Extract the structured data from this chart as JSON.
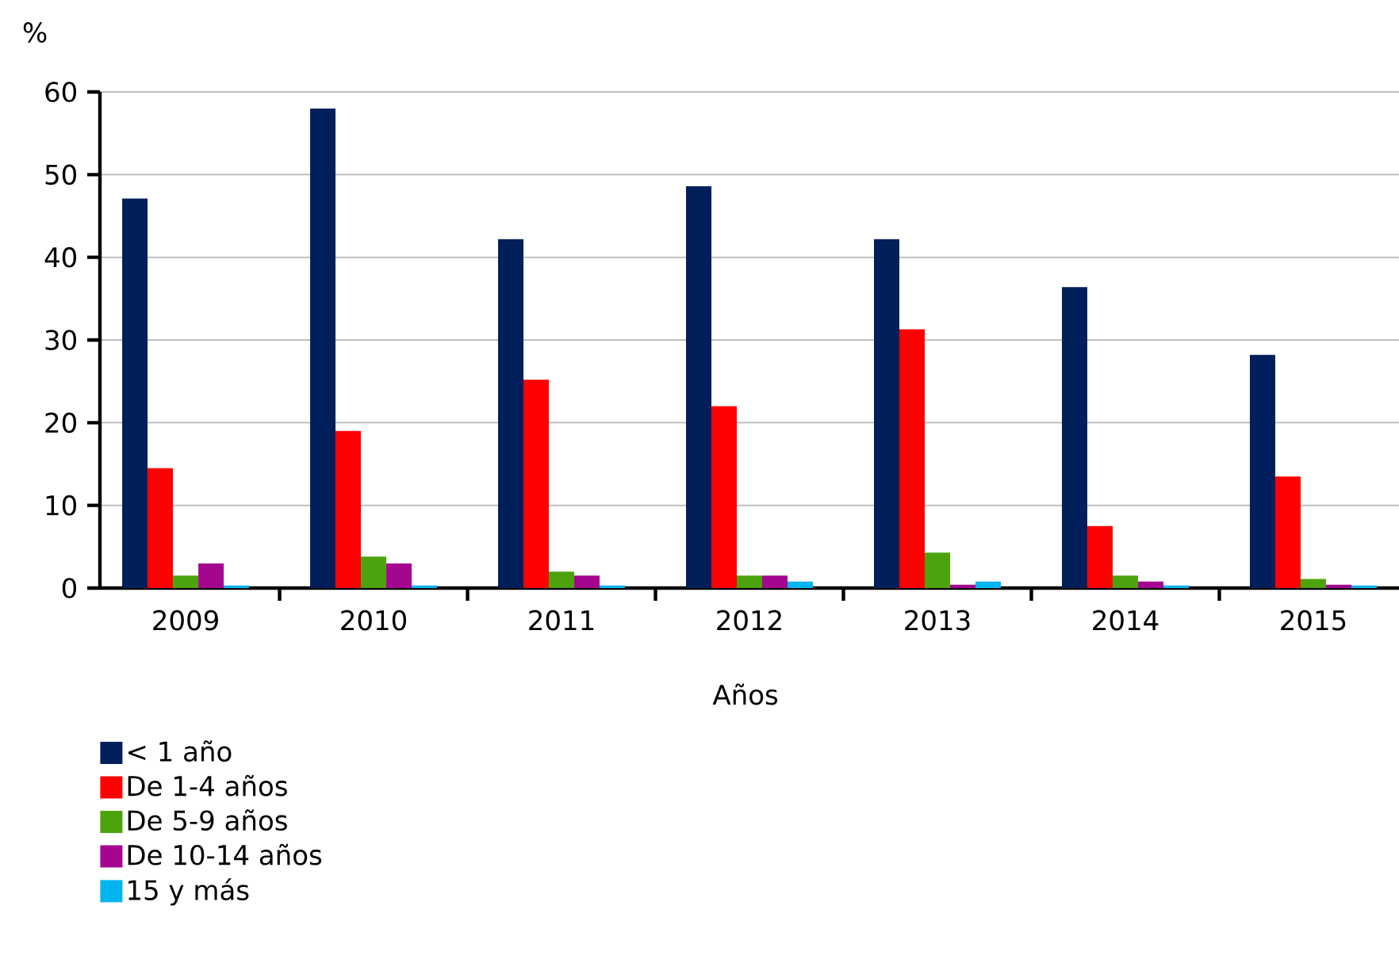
{
  "chart_data": {
    "type": "bar",
    "xlabel": "Años",
    "ylabel": "%",
    "categories": [
      "2009",
      "2010",
      "2011",
      "2012",
      "2013",
      "2014",
      "2015"
    ],
    "series": [
      {
        "name": "< 1 año",
        "color": "#001f5b",
        "values": [
          47.1,
          58,
          42.2,
          48.6,
          42.2,
          36.4,
          28.2
        ]
      },
      {
        "name": "De 1-4 años",
        "color": "#ff0000",
        "values": [
          14.5,
          19,
          25.2,
          22,
          31.3,
          7.5,
          13.5
        ]
      },
      {
        "name": "De 5-9 años",
        "color": "#4ca30d",
        "values": [
          1.5,
          3.8,
          2,
          1.5,
          4.3,
          1.5,
          1.1
        ]
      },
      {
        "name": "De 10-14 años",
        "color": "#a5068f",
        "values": [
          3,
          3,
          1.5,
          1.5,
          0.4,
          0.8,
          0.4
        ]
      },
      {
        "name": "15 y más",
        "color": "#00b4f0",
        "values": [
          0.3,
          0.3,
          0.3,
          0.8,
          0.8,
          0.3,
          0.3
        ]
      }
    ],
    "ylim": [
      0,
      60
    ],
    "yticks": [
      0,
      10,
      20,
      30,
      40,
      50,
      60
    ],
    "grid": "y",
    "legend": "bottom left"
  }
}
